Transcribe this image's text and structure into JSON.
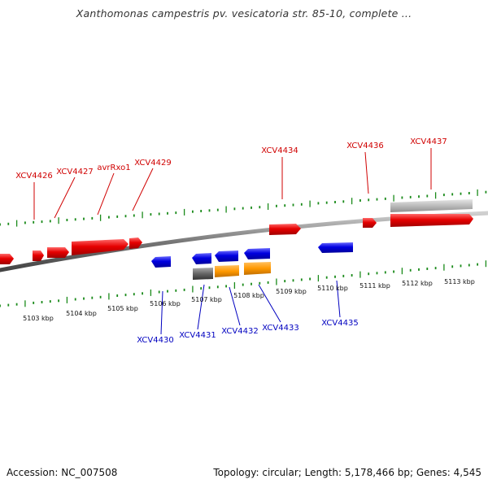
{
  "title": "Xanthomonas campestris pv. vesicatoria str. 85-10, complete ...",
  "footer": {
    "accession": "Accession: NC_007508",
    "summary": "Topology: circular; Length: 5,178,466 bp; Genes: 4,545"
  },
  "colors": {
    "plus_strand": "#e60000",
    "minus_strand": "#0000e0",
    "orange_feature": "#ff9900",
    "gray_feature": "#666666",
    "light_gray_feature": "#bbbbbb",
    "plus_label": "#d00000",
    "minus_label": "#0000c0",
    "tick": "#1a8a1a",
    "backbone": "#888888"
  },
  "ticks": {
    "upper": [],
    "lower": [
      "5103 kbp",
      "5104 kbp",
      "5105 kbp",
      "5106 kbp",
      "5107 kbp",
      "5108 kbp",
      "5109 kbp",
      "5110 kbp",
      "5111 kbp",
      "5112 kbp",
      "5113 kbp"
    ]
  },
  "plus_labels": [
    "XCV4426",
    "XCV4427",
    "avrRxo1",
    "XCV4429",
    "XCV4434",
    "XCV4436",
    "XCV4437"
  ],
  "minus_labels": [
    "XCV4430",
    "XCV4431",
    "XCV4432",
    "XCV4433",
    "XCV4435"
  ]
}
